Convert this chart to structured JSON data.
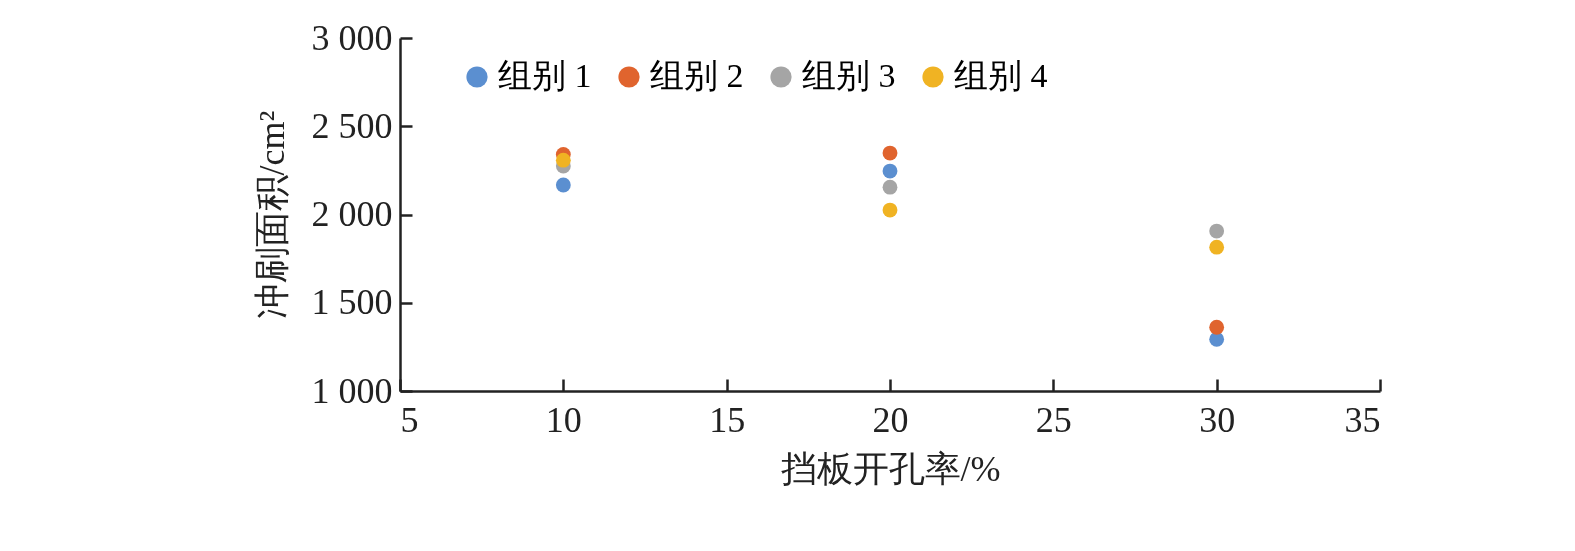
{
  "chart_data": {
    "type": "scatter",
    "xlabel": "挡板开孔率/%",
    "ylabel": "冲刷面积/cm²",
    "x": [
      10,
      20,
      30
    ],
    "series": [
      {
        "name": "组别 1",
        "color": "#5b8fd0",
        "values": [
          2167,
          2246,
          1293
        ]
      },
      {
        "name": "组别 2",
        "color": "#e0642e",
        "values": [
          2340,
          2348,
          1361
        ]
      },
      {
        "name": "组别 3",
        "color": "#a5a5a5",
        "values": [
          2275,
          2155,
          1906
        ]
      },
      {
        "name": "组别 4",
        "color": "#f0b323",
        "values": [
          2308,
          2025,
          1815
        ]
      }
    ],
    "xlim": [
      5,
      35
    ],
    "xticks": [
      5,
      10,
      15,
      20,
      25,
      30,
      35
    ],
    "ylim": [
      1000,
      3000
    ],
    "yticks": [
      {
        "value": 1000,
        "label": "1 000"
      },
      {
        "value": 1500,
        "label": "1 500"
      },
      {
        "value": 2000,
        "label": "2 000"
      },
      {
        "value": 2500,
        "label": "2 500"
      },
      {
        "value": 3000,
        "label": "3 000"
      }
    ],
    "marker": "circle",
    "legend": "top",
    "grid": false
  }
}
